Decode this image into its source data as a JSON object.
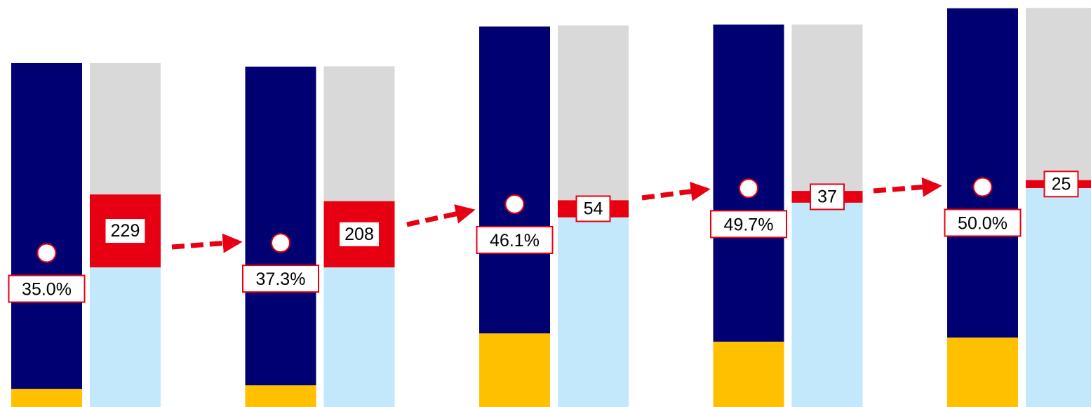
{
  "chart_data": {
    "type": "bar",
    "stacked": true,
    "ylim": [
      0,
      1277
    ],
    "y2lim": [
      0,
      92.5
    ],
    "series": [
      {
        "stack": "left",
        "color": "#ffc000",
        "values": [
          57,
          68,
          231,
          205,
          218
        ]
      },
      {
        "stack": "left",
        "color": "#000073",
        "values": [
          1022,
          1000,
          963,
          995,
          1033
        ]
      },
      {
        "stack": "right",
        "color": "#c4e8fb",
        "values": [
          438,
          438,
          595,
          641,
          687
        ]
      },
      {
        "stack": "right",
        "color": "#e60012",
        "values": [
          229,
          208,
          54,
          37,
          25
        ],
        "labels": true
      },
      {
        "stack": "right",
        "color": "#d9d9d9",
        "values": [
          412,
          423,
          548,
          522,
          540
        ]
      },
      {
        "type": "scatter",
        "axis": "y2",
        "color": "#e60012",
        "values": [
          35.0,
          37.3,
          46.1,
          49.7,
          50.0
        ],
        "value_labels": [
          "35.0%",
          "37.3%",
          "46.1%",
          "49.7%",
          "50.0%"
        ]
      }
    ]
  }
}
